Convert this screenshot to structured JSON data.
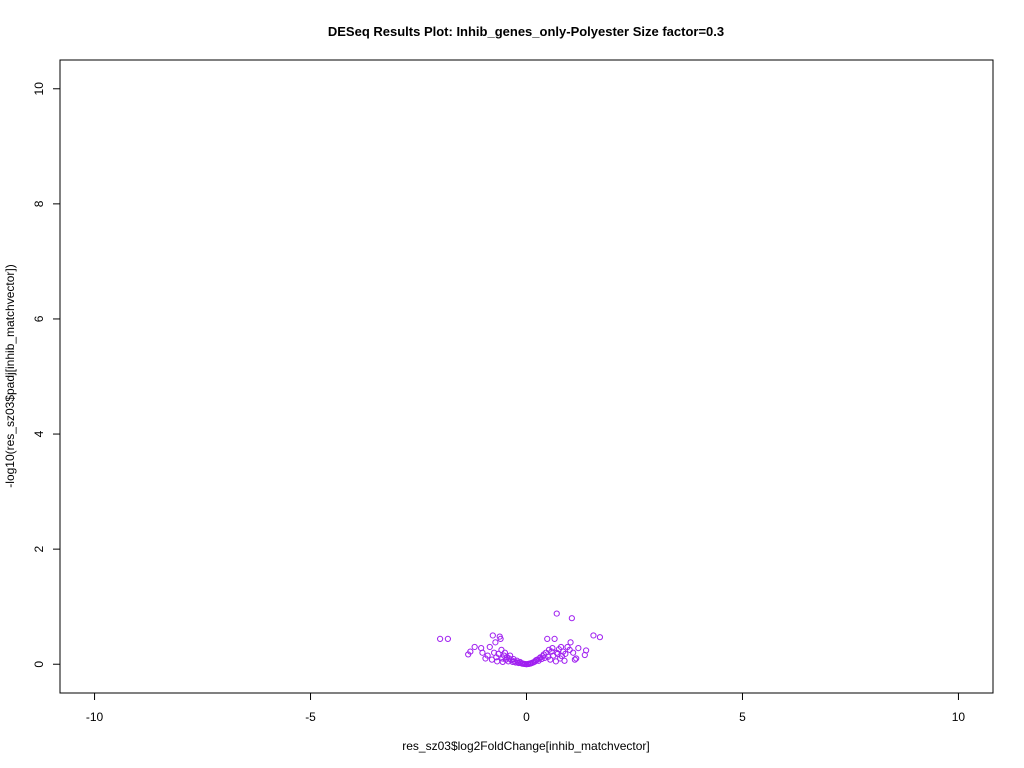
{
  "chart_data": {
    "type": "scatter",
    "title": "DESeq Results Plot: Inhib_genes_only-Polyester Size factor=0.3",
    "xlabel": "res_sz03$log2FoldChange[inhib_matchvector]",
    "ylabel": "-log10(res_sz03$padj[inhib_matchvector])",
    "xlim": [
      -10.8,
      10.8
    ],
    "ylim": [
      -0.5,
      10.5
    ],
    "xticks": [
      -10,
      -5,
      0,
      5,
      10
    ],
    "yticks": [
      0,
      2,
      4,
      6,
      8,
      10
    ],
    "xtick_labels": [
      "-10",
      "-5",
      "0",
      "5",
      "10"
    ],
    "ytick_labels": [
      "0",
      "2",
      "4",
      "6",
      "8",
      "10"
    ],
    "point_color": "#a020f0",
    "marker": "open-circle",
    "grid": false,
    "points": [
      {
        "x": -2.0,
        "y": 0.44
      },
      {
        "x": -1.82,
        "y": 0.44
      },
      {
        "x": -1.35,
        "y": 0.17
      },
      {
        "x": -1.3,
        "y": 0.22
      },
      {
        "x": -1.2,
        "y": 0.3
      },
      {
        "x": -1.05,
        "y": 0.28
      },
      {
        "x": -1.02,
        "y": 0.2
      },
      {
        "x": -0.95,
        "y": 0.1
      },
      {
        "x": -0.9,
        "y": 0.15
      },
      {
        "x": -0.85,
        "y": 0.3
      },
      {
        "x": -0.8,
        "y": 0.08
      },
      {
        "x": -0.78,
        "y": 0.5
      },
      {
        "x": -0.75,
        "y": 0.2
      },
      {
        "x": -0.72,
        "y": 0.38
      },
      {
        "x": -0.7,
        "y": 0.12
      },
      {
        "x": -0.68,
        "y": 0.05
      },
      {
        "x": -0.65,
        "y": 0.18
      },
      {
        "x": -0.62,
        "y": 0.48
      },
      {
        "x": -0.6,
        "y": 0.44
      },
      {
        "x": -0.58,
        "y": 0.25
      },
      {
        "x": -0.56,
        "y": 0.1
      },
      {
        "x": -0.55,
        "y": 0.04
      },
      {
        "x": -0.52,
        "y": 0.15
      },
      {
        "x": -0.5,
        "y": 0.2
      },
      {
        "x": -0.48,
        "y": 0.08
      },
      {
        "x": -0.45,
        "y": 0.12
      },
      {
        "x": -0.42,
        "y": 0.05
      },
      {
        "x": -0.4,
        "y": 0.1
      },
      {
        "x": -0.38,
        "y": 0.15
      },
      {
        "x": -0.35,
        "y": 0.07
      },
      {
        "x": -0.32,
        "y": 0.04
      },
      {
        "x": -0.3,
        "y": 0.09
      },
      {
        "x": -0.28,
        "y": 0.05
      },
      {
        "x": -0.25,
        "y": 0.03
      },
      {
        "x": -0.22,
        "y": 0.06
      },
      {
        "x": -0.2,
        "y": 0.03
      },
      {
        "x": -0.18,
        "y": 0.02
      },
      {
        "x": -0.15,
        "y": 0.04
      },
      {
        "x": -0.12,
        "y": 0.02
      },
      {
        "x": -0.1,
        "y": 0.01
      },
      {
        "x": -0.08,
        "y": 0.01
      },
      {
        "x": -0.05,
        "y": 0.005
      },
      {
        "x": -0.03,
        "y": 0.003
      },
      {
        "x": 0.0,
        "y": 0.0
      },
      {
        "x": 0.03,
        "y": 0.003
      },
      {
        "x": 0.05,
        "y": 0.006
      },
      {
        "x": 0.08,
        "y": 0.01
      },
      {
        "x": 0.1,
        "y": 0.015
      },
      {
        "x": 0.12,
        "y": 0.02
      },
      {
        "x": 0.15,
        "y": 0.03
      },
      {
        "x": 0.18,
        "y": 0.04
      },
      {
        "x": 0.2,
        "y": 0.05
      },
      {
        "x": 0.22,
        "y": 0.07
      },
      {
        "x": 0.25,
        "y": 0.08
      },
      {
        "x": 0.28,
        "y": 0.06
      },
      {
        "x": 0.3,
        "y": 0.1
      },
      {
        "x": 0.32,
        "y": 0.12
      },
      {
        "x": 0.35,
        "y": 0.09
      },
      {
        "x": 0.38,
        "y": 0.14
      },
      {
        "x": 0.4,
        "y": 0.17
      },
      {
        "x": 0.42,
        "y": 0.11
      },
      {
        "x": 0.45,
        "y": 0.2
      },
      {
        "x": 0.48,
        "y": 0.44
      },
      {
        "x": 0.5,
        "y": 0.13
      },
      {
        "x": 0.52,
        "y": 0.25
      },
      {
        "x": 0.55,
        "y": 0.08
      },
      {
        "x": 0.58,
        "y": 0.22
      },
      {
        "x": 0.6,
        "y": 0.28
      },
      {
        "x": 0.62,
        "y": 0.15
      },
      {
        "x": 0.65,
        "y": 0.44
      },
      {
        "x": 0.68,
        "y": 0.05
      },
      {
        "x": 0.7,
        "y": 0.2
      },
      {
        "x": 0.7,
        "y": 0.88
      },
      {
        "x": 0.72,
        "y": 0.18
      },
      {
        "x": 0.75,
        "y": 0.26
      },
      {
        "x": 0.78,
        "y": 0.1
      },
      {
        "x": 0.8,
        "y": 0.3
      },
      {
        "x": 0.82,
        "y": 0.14
      },
      {
        "x": 0.85,
        "y": 0.22
      },
      {
        "x": 0.88,
        "y": 0.06
      },
      {
        "x": 0.9,
        "y": 0.18
      },
      {
        "x": 0.95,
        "y": 0.3
      },
      {
        "x": 1.0,
        "y": 0.25
      },
      {
        "x": 1.02,
        "y": 0.38
      },
      {
        "x": 1.05,
        "y": 0.8
      },
      {
        "x": 1.08,
        "y": 0.2
      },
      {
        "x": 1.12,
        "y": 0.08
      },
      {
        "x": 1.15,
        "y": 0.1
      },
      {
        "x": 1.2,
        "y": 0.28
      },
      {
        "x": 1.35,
        "y": 0.16
      },
      {
        "x": 1.38,
        "y": 0.24
      },
      {
        "x": 1.55,
        "y": 0.5
      },
      {
        "x": 1.7,
        "y": 0.47
      }
    ]
  }
}
